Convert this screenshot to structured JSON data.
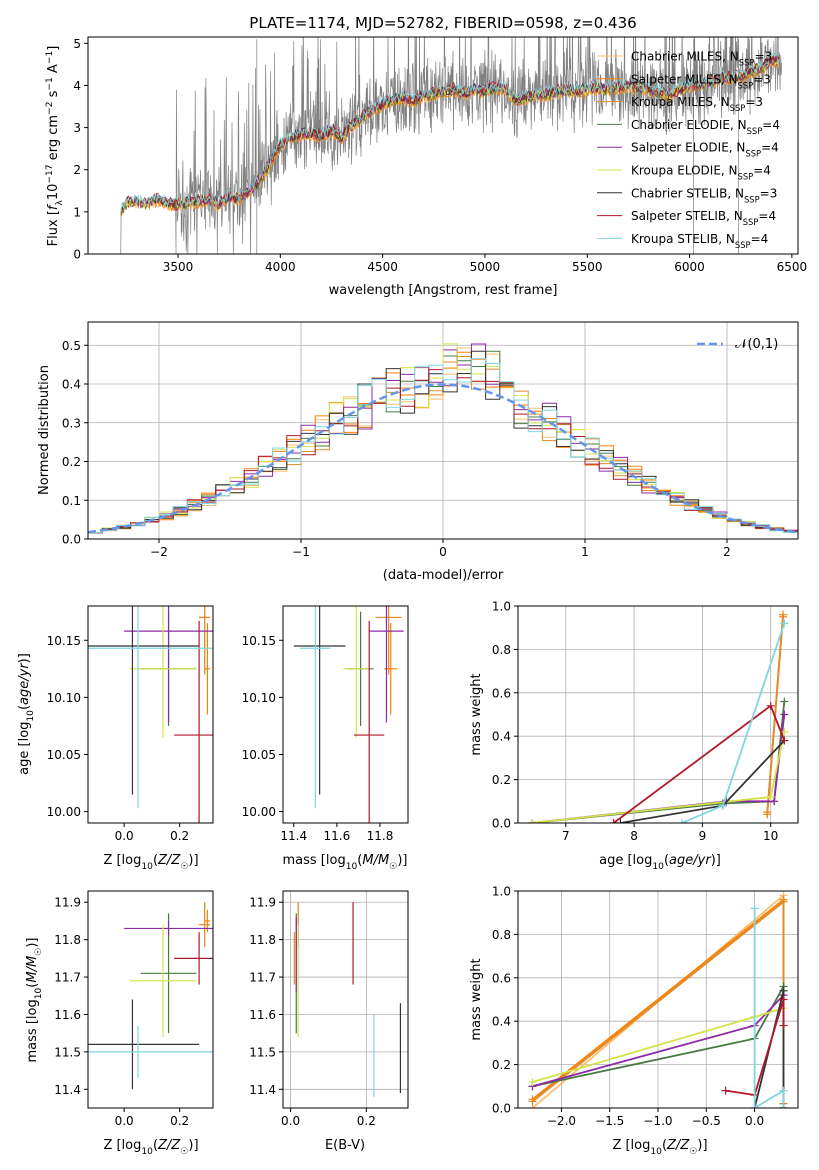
{
  "figure": {
    "title": "PLATE=1174, MJD=52782, FIBERID=0598, z=0.436"
  },
  "models": [
    {
      "name": "Chabrier MILES",
      "nssp": "3",
      "color": "#fdbf6f"
    },
    {
      "name": "Salpeter MILES",
      "nssp": "3",
      "color": "#ff7f00"
    },
    {
      "name": "Kroupa MILES",
      "nssp": "3",
      "color": "#e08a2c"
    },
    {
      "name": "Chabrier ELODIE",
      "nssp": "4",
      "color": "#4a7a44"
    },
    {
      "name": "Salpeter ELODIE",
      "nssp": "4",
      "color": "#8e2aa6"
    },
    {
      "name": "Kroupa ELODIE",
      "nssp": "4",
      "color": "#d4e24a"
    },
    {
      "name": "Chabrier STELIB",
      "nssp": "3",
      "color": "#333333"
    },
    {
      "name": "Salpeter STELIB",
      "nssp": "4",
      "color": "#b2182b"
    },
    {
      "name": "Kroupa STELIB",
      "nssp": "4",
      "color": "#7fd6e0"
    }
  ],
  "nssp_label": "N",
  "nssp_sub": "SSP",
  "chart_data": [
    {
      "type": "line",
      "id": "spectrum",
      "xlabel": "wavelength [Angstrom, rest frame]",
      "ylabel": "Flux [f_λ 10^-17 erg cm^-2 s^-1 A^-1]",
      "xlim": [
        3060,
        6530
      ],
      "ylim": [
        0,
        5.15
      ],
      "xticks": [
        3500,
        4000,
        4500,
        5000,
        5500,
        6000,
        6500
      ],
      "yticks": [
        0,
        1,
        2,
        3,
        4,
        5
      ],
      "data_color": "#808080",
      "model_x": [
        3220,
        3250,
        3300,
        3350,
        3400,
        3450,
        3500,
        3550,
        3600,
        3650,
        3700,
        3750,
        3800,
        3850,
        3900,
        3950,
        4000,
        4050,
        4100,
        4150,
        4200,
        4250,
        4300,
        4350,
        4400,
        4450,
        4500,
        4550,
        4600,
        4650,
        4700,
        4750,
        4800,
        4850,
        4900,
        4950,
        5000,
        5050,
        5100,
        5150,
        5200,
        5250,
        5300,
        5350,
        5400,
        5450,
        5500,
        5550,
        5600,
        5650,
        5700,
        5750,
        5800,
        5850,
        5900,
        5950,
        6000,
        6050,
        6100,
        6150,
        6200,
        6250,
        6300,
        6350,
        6400
      ],
      "model_y": [
        1.05,
        1.2,
        1.25,
        1.2,
        1.3,
        1.2,
        1.15,
        1.22,
        1.25,
        1.3,
        1.2,
        1.35,
        1.3,
        1.5,
        1.75,
        2.15,
        2.6,
        2.75,
        2.85,
        2.85,
        2.8,
        2.95,
        2.75,
        3.05,
        3.25,
        3.4,
        3.55,
        3.65,
        3.7,
        3.6,
        3.75,
        3.8,
        3.85,
        3.9,
        3.8,
        3.9,
        3.85,
        3.95,
        3.9,
        3.65,
        3.7,
        3.75,
        3.8,
        3.85,
        3.9,
        3.85,
        3.9,
        3.95,
        3.9,
        3.95,
        4.0,
        3.95,
        3.9,
        3.85,
        3.75,
        3.9,
        4.0,
        4.0,
        4.1,
        4.15,
        4.2,
        4.2,
        4.35,
        4.4,
        4.6
      ]
    },
    {
      "type": "line",
      "id": "residuals",
      "xlabel": "(data-model)/error",
      "ylabel": "Normed distribution",
      "xlim": [
        -2.5,
        2.5
      ],
      "ylim": [
        0,
        0.56
      ],
      "xticks": [
        -2,
        -1,
        0,
        1,
        2
      ],
      "yticks": [
        0.0,
        0.1,
        0.2,
        0.3,
        0.4,
        0.5
      ],
      "legend": "𝒩(0,1)",
      "gauss_color": "#6495ed"
    },
    {
      "type": "scatter",
      "id": "age_vs_Z",
      "xlabel": "Z [log10(Z/Z☉)]",
      "ylabel": "age [log10(age/yr)]",
      "xlim": [
        -0.13,
        0.32
      ],
      "ylim": [
        9.99,
        10.18
      ],
      "xticks": [
        0.0,
        0.2
      ],
      "yticks": [
        10.0,
        10.05,
        10.1,
        10.15
      ],
      "points": [
        {
          "model": 0,
          "x": 0.29,
          "y": 10.17,
          "xerr": 0.02,
          "yerr": 0.05
        },
        {
          "model": 1,
          "x": 0.3,
          "y": 10.125,
          "xerr": 0.01,
          "yerr": 0.04
        },
        {
          "model": 2,
          "x": 0.29,
          "y": 10.17,
          "xerr": 0.02,
          "yerr": 0.05
        },
        {
          "model": 3,
          "x": 0.16,
          "y": 10.125,
          "xerr": 0.1,
          "yerr": 0.05
        },
        {
          "model": 4,
          "x": 0.16,
          "y": 10.158,
          "xerr": 0.16,
          "yerr": 0.08
        },
        {
          "model": 5,
          "x": 0.14,
          "y": 10.125,
          "xerr": 0.12,
          "yerr": 0.06
        },
        {
          "model": 6,
          "x": 0.03,
          "y": 10.145,
          "xerr": 0.24,
          "yerr": 0.13
        },
        {
          "model": 7,
          "x": 0.27,
          "y": 10.067,
          "xerr": 0.09,
          "yerr": 0.1
        },
        {
          "model": 8,
          "x": 0.05,
          "y": 10.143,
          "xerr": 0.28,
          "yerr": 0.14
        }
      ]
    },
    {
      "type": "scatter",
      "id": "age_vs_mass",
      "xlabel": "mass [log10(M/M☉)]",
      "ylabel": "",
      "xlim": [
        11.35,
        11.93
      ],
      "ylim": [
        9.99,
        10.18
      ],
      "xticks": [
        11.4,
        11.6,
        11.8
      ],
      "yticks": [
        10.0,
        10.05,
        10.1,
        10.15
      ],
      "points": [
        {
          "model": 0,
          "x": 11.84,
          "y": 10.17,
          "xerr": 0.06,
          "yerr": 0.05
        },
        {
          "model": 1,
          "x": 11.85,
          "y": 10.125,
          "xerr": 0.03,
          "yerr": 0.04
        },
        {
          "model": 2,
          "x": 11.84,
          "y": 10.17,
          "xerr": 0.06,
          "yerr": 0.05
        },
        {
          "model": 3,
          "x": 11.71,
          "y": 10.125,
          "xerr": 0.06,
          "yerr": 0.05
        },
        {
          "model": 4,
          "x": 11.83,
          "y": 10.158,
          "xerr": 0.08,
          "yerr": 0.08
        },
        {
          "model": 5,
          "x": 11.69,
          "y": 10.125,
          "xerr": 0.06,
          "yerr": 0.06
        },
        {
          "model": 6,
          "x": 11.52,
          "y": 10.145,
          "xerr": 0.12,
          "yerr": 0.13
        },
        {
          "model": 7,
          "x": 11.75,
          "y": 10.067,
          "xerr": 0.07,
          "yerr": 0.1
        },
        {
          "model": 8,
          "x": 11.5,
          "y": 10.143,
          "xerr": 0.07,
          "yerr": 0.14
        }
      ]
    },
    {
      "type": "line",
      "id": "weight_vs_age",
      "xlabel": "age [log10(age/yr)]",
      "ylabel": "mass weight",
      "xlim": [
        6.3,
        10.4
      ],
      "ylim": [
        0,
        1.0
      ],
      "xticks": [
        7,
        8,
        9,
        10
      ],
      "yticks": [
        0.0,
        0.2,
        0.4,
        0.6,
        0.8,
        1.0
      ],
      "series": [
        {
          "model": 0,
          "x": [
            9.95,
            10.18
          ],
          "y": [
            0.05,
            0.95
          ]
        },
        {
          "model": 1,
          "x": [
            9.95,
            10.18
          ],
          "y": [
            0.04,
            0.96
          ]
        },
        {
          "model": 2,
          "x": [
            9.95,
            10.18
          ],
          "y": [
            0.05,
            0.95
          ]
        },
        {
          "model": 3,
          "x": [
            6.5,
            9.3,
            10.05,
            10.2
          ],
          "y": [
            0.0,
            0.09,
            0.1,
            0.56
          ]
        },
        {
          "model": 4,
          "x": [
            6.5,
            9.35,
            10.05,
            10.2
          ],
          "y": [
            0.0,
            0.1,
            0.1,
            0.5
          ]
        },
        {
          "model": 5,
          "x": [
            6.5,
            10.0,
            10.2
          ],
          "y": [
            0.0,
            0.12,
            0.42
          ]
        },
        {
          "model": 6,
          "x": [
            7.8,
            9.3,
            10.2
          ],
          "y": [
            0.0,
            0.08,
            0.38
          ]
        },
        {
          "model": 7,
          "x": [
            7.7,
            10.0,
            10.2
          ],
          "y": [
            0.0,
            0.54,
            0.38
          ]
        },
        {
          "model": 8,
          "x": [
            8.7,
            9.3,
            10.2
          ],
          "y": [
            0.0,
            0.08,
            0.92
          ]
        }
      ]
    },
    {
      "type": "scatter",
      "id": "mass_vs_Z",
      "xlabel": "Z [log10(Z/Z☉)]",
      "ylabel": "mass [log10(M/M☉)]",
      "xlim": [
        -0.13,
        0.32
      ],
      "ylim": [
        11.35,
        11.93
      ],
      "xticks": [
        0.0,
        0.2
      ],
      "yticks": [
        11.4,
        11.5,
        11.6,
        11.7,
        11.8,
        11.9
      ],
      "points": [
        {
          "model": 0,
          "x": 0.29,
          "y": 11.84,
          "xerr": 0.02,
          "yerr": 0.06
        },
        {
          "model": 1,
          "x": 0.3,
          "y": 11.85,
          "xerr": 0.01,
          "yerr": 0.03
        },
        {
          "model": 2,
          "x": 0.29,
          "y": 11.84,
          "xerr": 0.02,
          "yerr": 0.06
        },
        {
          "model": 3,
          "x": 0.16,
          "y": 11.71,
          "xerr": 0.1,
          "yerr": 0.16
        },
        {
          "model": 4,
          "x": 0.16,
          "y": 11.83,
          "xerr": 0.16,
          "yerr": 0.02
        },
        {
          "model": 5,
          "x": 0.14,
          "y": 11.69,
          "xerr": 0.12,
          "yerr": 0.15
        },
        {
          "model": 6,
          "x": 0.03,
          "y": 11.52,
          "xerr": 0.24,
          "yerr": 0.12
        },
        {
          "model": 7,
          "x": 0.27,
          "y": 11.75,
          "xerr": 0.09,
          "yerr": 0.07
        },
        {
          "model": 8,
          "x": 0.05,
          "y": 11.5,
          "xerr": 0.28,
          "yerr": 0.07
        }
      ]
    },
    {
      "type": "scatter",
      "id": "mass_vs_ebv",
      "xlabel": "E(B-V)",
      "ylabel": "",
      "xlim": [
        -0.02,
        0.31
      ],
      "ylim": [
        11.35,
        11.93
      ],
      "xticks": [
        0.0,
        0.2
      ],
      "yticks": [
        11.4,
        11.5,
        11.6,
        11.7,
        11.8,
        11.9
      ],
      "points": [
        {
          "model": 0,
          "x": 0.02,
          "y": 11.84,
          "yerr": 0.06
        },
        {
          "model": 1,
          "x": 0.01,
          "y": 11.75,
          "yerr": 0.07
        },
        {
          "model": 2,
          "x": 0.02,
          "y": 11.84,
          "yerr": 0.06
        },
        {
          "model": 3,
          "x": 0.015,
          "y": 11.71,
          "yerr": 0.16
        },
        {
          "model": 4,
          "x": 0.015,
          "y": 11.76,
          "yerr": 0.1
        },
        {
          "model": 5,
          "x": 0.02,
          "y": 11.69,
          "yerr": 0.15
        },
        {
          "model": 6,
          "x": 0.29,
          "y": 11.51,
          "yerr": 0.12
        },
        {
          "model": 7,
          "x": 0.165,
          "y": 11.79,
          "yerr": 0.11
        },
        {
          "model": 8,
          "x": 0.22,
          "y": 11.49,
          "yerr": 0.11
        }
      ]
    },
    {
      "type": "line",
      "id": "weight_vs_Z",
      "xlabel": "Z [log10(Z/Z☉)]",
      "ylabel": "mass weight",
      "xlim": [
        -2.45,
        0.45
      ],
      "ylim": [
        0,
        1.0
      ],
      "xticks": [
        -2.0,
        -1.5,
        -1.0,
        -0.5,
        0.0
      ],
      "yticks": [
        0.0,
        0.2,
        0.4,
        0.6,
        0.8,
        1.0
      ],
      "series": [
        {
          "model": 0,
          "x": [
            -2.3,
            0.3,
            0.3
          ],
          "y": [
            0.0,
            0.98,
            0.02
          ]
        },
        {
          "model": 1,
          "x": [
            -2.3,
            0.3,
            0.3
          ],
          "y": [
            0.04,
            0.96,
            0.0
          ]
        },
        {
          "model": 2,
          "x": [
            -2.3,
            0.3,
            0.3
          ],
          "y": [
            0.03,
            0.95,
            0.02
          ]
        },
        {
          "model": 3,
          "x": [
            -2.3,
            0.0,
            0.3,
            0.3
          ],
          "y": [
            0.1,
            0.32,
            0.56,
            0.0
          ]
        },
        {
          "model": 4,
          "x": [
            -2.3,
            0.0,
            0.3,
            0.3
          ],
          "y": [
            0.1,
            0.38,
            0.52,
            0.0
          ]
        },
        {
          "model": 5,
          "x": [
            -2.3,
            0.0,
            0.3,
            0.3
          ],
          "y": [
            0.12,
            0.42,
            0.46,
            0.0
          ]
        },
        {
          "model": 6,
          "x": [
            0.0,
            0.3,
            0.3
          ],
          "y": [
            0.0,
            0.54,
            0.0
          ]
        },
        {
          "model": 7,
          "x": [
            -0.3,
            0.0,
            0.3,
            0.3
          ],
          "y": [
            0.08,
            0.06,
            0.5,
            0.38
          ]
        },
        {
          "model": 8,
          "x": [
            0.0,
            0.0,
            0.3,
            0.3
          ],
          "y": [
            0.92,
            0.0,
            0.08,
            0.0
          ]
        }
      ]
    }
  ]
}
